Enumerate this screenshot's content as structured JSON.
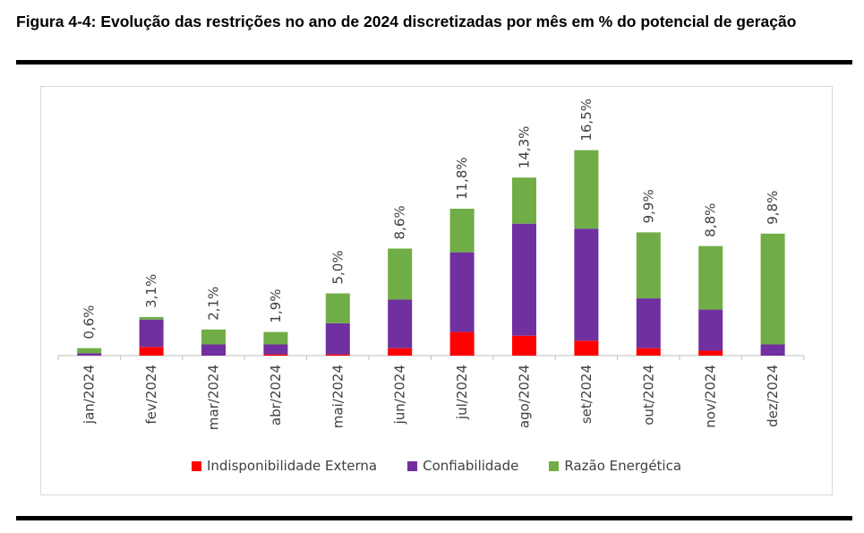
{
  "figure": {
    "title": "Figura 4-4: Evolução das restrições no ano de 2024 discretizadas por mês em % do potencial de geração"
  },
  "colors": {
    "indisponibilidade": "#ff0000",
    "confiabilidade": "#7030a0",
    "razao": "#70ad47"
  },
  "legend": [
    {
      "label": "Indisponibilidade Externa",
      "color": "#ff0000"
    },
    {
      "label": "Confiabilidade",
      "color": "#7030a0"
    },
    {
      "label": "Razão Energética",
      "color": "#70ad47"
    }
  ],
  "chart_data": {
    "type": "bar",
    "stacked": true,
    "categories": [
      "jan/2024",
      "fev/2024",
      "mar/2024",
      "abr/2024",
      "mai/2024",
      "jun/2024",
      "jul/2024",
      "ago/2024",
      "set/2024",
      "out/2024",
      "nov/2024",
      "dez/2024"
    ],
    "series": [
      {
        "name": "Indisponibilidade Externa",
        "values": [
          0.0,
          0.7,
          0.0,
          0.1,
          0.1,
          0.6,
          1.9,
          1.6,
          1.2,
          0.6,
          0.4,
          0.0
        ]
      },
      {
        "name": "Confiabilidade",
        "values": [
          0.2,
          2.2,
          0.9,
          0.8,
          2.5,
          3.9,
          6.4,
          9.0,
          9.0,
          4.0,
          3.3,
          0.9
        ]
      },
      {
        "name": "Razão Energética",
        "values": [
          0.4,
          0.2,
          1.2,
          1.0,
          2.4,
          4.1,
          3.5,
          3.7,
          6.3,
          5.3,
          5.1,
          8.9
        ]
      }
    ],
    "totals": [
      "0,6%",
      "3,1%",
      "2,1%",
      "1,9%",
      "5,0%",
      "8,6%",
      "11,8%",
      "14,3%",
      "16,5%",
      "9,9%",
      "8,8%",
      "9,8%"
    ],
    "total_values": [
      0.6,
      3.1,
      2.1,
      1.9,
      5.0,
      8.6,
      11.8,
      14.3,
      16.5,
      9.9,
      8.8,
      9.8
    ],
    "xlabel": "",
    "ylabel": "",
    "ylim": [
      0,
      18
    ],
    "grid": false,
    "legend_position": "bottom"
  }
}
